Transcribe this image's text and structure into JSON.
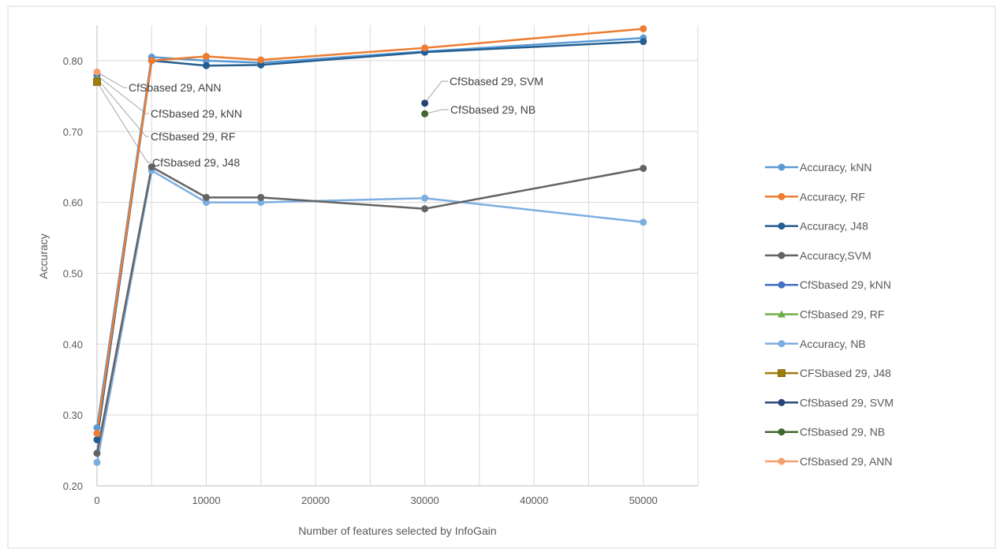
{
  "chart_data": {
    "type": "line",
    "title": "",
    "xlabel": "Number  of features selected by InfoGain",
    "ylabel": "Accuracy",
    "xlim": [
      0,
      55000
    ],
    "ylim": [
      0.2,
      0.85
    ],
    "x_ticks": [
      "0",
      "10000",
      "20000",
      "30000",
      "40000",
      "50000"
    ],
    "y_ticks": [
      "0.20",
      "0.30",
      "0.40",
      "0.50",
      "0.60",
      "0.70",
      "0.80"
    ],
    "grid": true,
    "legend_position": "right",
    "series": [
      {
        "name": "Accuracy, kNN",
        "color": "#5B9BD5",
        "marker": "circle",
        "points": [
          [
            0,
            0.282
          ],
          [
            5000,
            0.805
          ],
          [
            10000,
            0.8
          ],
          [
            15000,
            0.797
          ],
          [
            30000,
            0.813
          ],
          [
            50000,
            0.832
          ]
        ]
      },
      {
        "name": "Accuracy, RF",
        "color": "#ED7D31",
        "marker": "circle",
        "points": [
          [
            0,
            0.274
          ],
          [
            5000,
            0.8
          ],
          [
            10000,
            0.806
          ],
          [
            15000,
            0.801
          ],
          [
            30000,
            0.818
          ],
          [
            50000,
            0.845
          ]
        ]
      },
      {
        "name": "Accuracy, J48",
        "color": "#255E91",
        "marker": "circle",
        "points": [
          [
            0,
            0.265
          ],
          [
            5000,
            0.8
          ],
          [
            10000,
            0.793
          ],
          [
            15000,
            0.794
          ],
          [
            30000,
            0.812
          ],
          [
            50000,
            0.827
          ]
        ]
      },
      {
        "name": "Accuracy,SVM",
        "color": "#636363",
        "marker": "circle",
        "points": [
          [
            0,
            0.246
          ],
          [
            5000,
            0.65
          ],
          [
            10000,
            0.607
          ],
          [
            15000,
            0.607
          ],
          [
            30000,
            0.591
          ],
          [
            50000,
            0.648
          ]
        ]
      },
      {
        "name": "CfSbased 29, kNN",
        "color": "#4472C4",
        "marker": "circle",
        "points": [
          [
            0,
            0.779
          ]
        ]
      },
      {
        "name": "CfSbased 29, RF",
        "color": "#70AD47",
        "marker": "triangle",
        "points": [
          [
            0,
            0.775
          ]
        ]
      },
      {
        "name": "Accuracy, NB",
        "color": "#7DAEE0",
        "marker": "circle",
        "points": [
          [
            0,
            0.233
          ],
          [
            5000,
            0.645
          ],
          [
            10000,
            0.6
          ],
          [
            15000,
            0.6
          ],
          [
            30000,
            0.606
          ],
          [
            50000,
            0.572
          ]
        ]
      },
      {
        "name": "CFSbased 29, J48",
        "color": "#9E7D0A",
        "marker": "square",
        "points": [
          [
            0,
            0.77
          ]
        ]
      },
      {
        "name": "CfSbased 29, SVM",
        "color": "#264478",
        "marker": "circle",
        "points": [
          [
            30000,
            0.74
          ]
        ]
      },
      {
        "name": "CfSbased 29, NB",
        "color": "#43682B",
        "marker": "circle",
        "points": [
          [
            30000,
            0.725
          ]
        ]
      },
      {
        "name": "CfSbased 29, ANN",
        "color": "#F4A06A",
        "marker": "circle",
        "points": [
          [
            0,
            0.784
          ]
        ]
      }
    ],
    "annotations": [
      {
        "text": "CfSbased 29, ANN",
        "x": 0,
        "y": 0.784
      },
      {
        "text": "CfSbased 29, kNN",
        "x": 0,
        "y": 0.779
      },
      {
        "text": "CfSbased 29, RF",
        "x": 0,
        "y": 0.775
      },
      {
        "text": "CfSbased 29, J48",
        "x": 0,
        "y": 0.77
      },
      {
        "text": "CfSbased 29, SVM",
        "x": 30000,
        "y": 0.74
      },
      {
        "text": "CfSbased 29, NB",
        "x": 30000,
        "y": 0.725
      }
    ]
  }
}
